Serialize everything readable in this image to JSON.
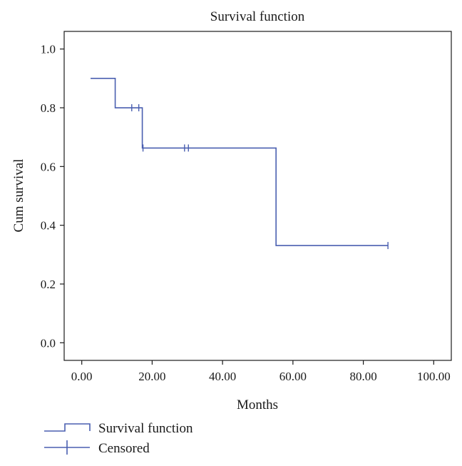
{
  "chart_data": {
    "type": "line",
    "title": "Survival function",
    "xlabel": "Months",
    "ylabel": "Cum survival",
    "xlim": [
      -5,
      105
    ],
    "ylim": [
      -0.06,
      1.06
    ],
    "x_ticks": [
      0,
      20,
      40,
      60,
      80,
      100
    ],
    "x_tick_labels": [
      "0.00",
      "20.00",
      "40.00",
      "60.00",
      "80.00",
      "100.00"
    ],
    "y_ticks": [
      0.0,
      0.2,
      0.4,
      0.6,
      0.8,
      1.0
    ],
    "y_tick_labels": [
      "0.0",
      "0.2",
      "0.4",
      "0.6",
      "0.8",
      "1.0"
    ],
    "grid": false,
    "legend_position": "bottom-left",
    "series": [
      {
        "name": "Survival function",
        "style": "step",
        "color": "#4a5fb0",
        "x": [
          2.5,
          9.5,
          17.2,
          55.2,
          87.0
        ],
        "y": [
          0.9,
          0.8,
          0.663,
          0.331,
          0.331
        ]
      },
      {
        "name": "Censored",
        "style": "marker-plus",
        "color": "#4a5fb0",
        "x": [
          14.2,
          16.2,
          17.4,
          29.2,
          30.3,
          87.0
        ],
        "y": [
          0.8,
          0.8,
          0.663,
          0.663,
          0.663,
          0.331
        ]
      }
    ]
  }
}
